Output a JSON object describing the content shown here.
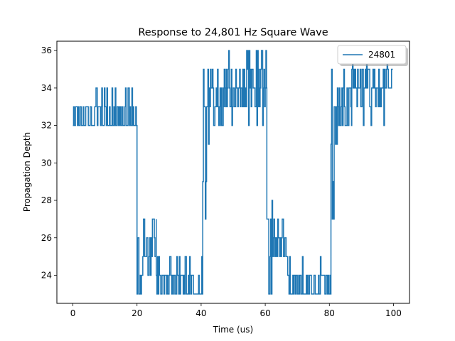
{
  "chart_data": {
    "type": "line",
    "title": "Response to 24,801 Hz Square Wave",
    "xlabel": "Time (us)",
    "ylabel": "Propagation Depth",
    "xlim": [
      -5,
      105
    ],
    "ylim": [
      22.5,
      36.5
    ],
    "xticks": [
      0,
      20,
      40,
      60,
      80,
      100
    ],
    "yticks": [
      24,
      26,
      28,
      30,
      32,
      34,
      36
    ],
    "grid": false,
    "legend": {
      "placement": "top-right"
    },
    "colors": {
      "series": "#1f77b4"
    },
    "series": [
      {
        "name": "24801",
        "segments": [
          {
            "x_start": 0,
            "x_end": 20,
            "levels": [
              32,
              33
            ],
            "spikes": [
              34
            ],
            "step": 0.2
          },
          {
            "x_start": 20,
            "x_end": 22,
            "levels": [
              23,
              24,
              25,
              26
            ],
            "spikes": [
              23
            ],
            "step": 0.2
          },
          {
            "x_start": 22,
            "x_end": 26,
            "levels": [
              25,
              26,
              27
            ],
            "spikes": [
              24,
              23
            ],
            "step": 0.2
          },
          {
            "x_start": 26,
            "x_end": 40.5,
            "levels": [
              23,
              24
            ],
            "spikes": [
              25
            ],
            "step": 0.2
          },
          {
            "x_start": 40.5,
            "x_end": 42.5,
            "levels": [
              27,
              29,
              31,
              33
            ],
            "spikes": [
              35
            ],
            "step": 0.2
          },
          {
            "x_start": 42.5,
            "x_end": 47,
            "levels": [
              32,
              33,
              34
            ],
            "spikes": [
              35
            ],
            "step": 0.2
          },
          {
            "x_start": 47,
            "x_end": 60.5,
            "levels": [
              33,
              34,
              35
            ],
            "spikes": [
              32,
              36
            ],
            "step": 0.2
          },
          {
            "x_start": 60.5,
            "x_end": 62.5,
            "levels": [
              23,
              25,
              27
            ],
            "spikes": [
              28
            ],
            "step": 0.2
          },
          {
            "x_start": 62.5,
            "x_end": 67,
            "levels": [
              25,
              26,
              27
            ],
            "spikes": [
              24
            ],
            "step": 0.2
          },
          {
            "x_start": 67,
            "x_end": 80.5,
            "levels": [
              23,
              24
            ],
            "spikes": [
              25
            ],
            "step": 0.2
          },
          {
            "x_start": 80.5,
            "x_end": 82.5,
            "levels": [
              27,
              29,
              31,
              33
            ],
            "spikes": [
              35
            ],
            "step": 0.2
          },
          {
            "x_start": 82.5,
            "x_end": 87,
            "levels": [
              32,
              33,
              34
            ],
            "spikes": [
              35
            ],
            "step": 0.2
          },
          {
            "x_start": 87,
            "x_end": 100,
            "levels": [
              33,
              34,
              35
            ],
            "spikes": [
              32,
              36
            ],
            "step": 0.2
          }
        ]
      }
    ]
  }
}
